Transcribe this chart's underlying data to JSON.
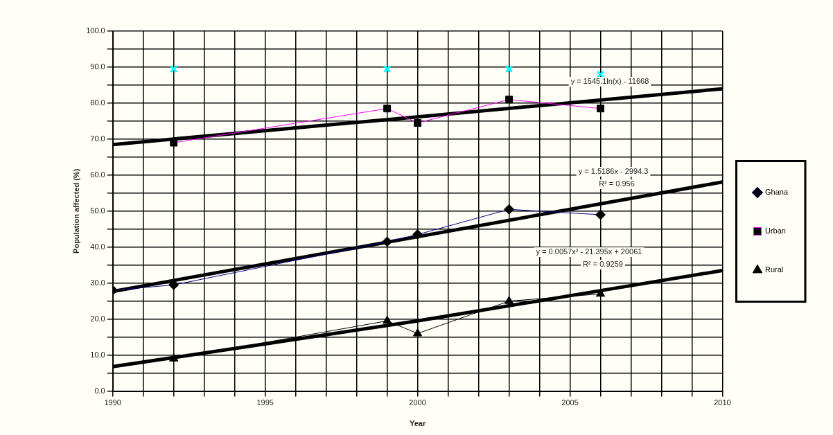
{
  "chart_data": {
    "type": "line",
    "xlabel": "Year",
    "ylabel": "Population affected (%)",
    "xlim": [
      1990,
      2010
    ],
    "xticks": [
      1990,
      {
        "value": 1991,
        "label": null
      },
      {
        "value": 1992,
        "label": null
      },
      {
        "value": 1993,
        "label": null
      },
      {
        "value": 1994,
        "label": null
      },
      1995,
      {
        "value": 1996,
        "label": null
      },
      {
        "value": 1997,
        "label": null
      },
      {
        "value": 1998,
        "label": null
      },
      {
        "value": 1999,
        "label": null
      },
      2000,
      {
        "value": 2001,
        "label": null
      },
      {
        "value": 2002,
        "label": null
      },
      {
        "value": 2003,
        "label": null
      },
      {
        "value": 2004,
        "label": null
      },
      2005,
      {
        "value": 2006,
        "label": null
      },
      {
        "value": 2007,
        "label": null
      },
      {
        "value": 2008,
        "label": null
      },
      {
        "value": 2009,
        "label": null
      },
      2010
    ],
    "ylim": [
      0,
      100
    ],
    "yticks": [
      {
        "value": 0,
        "label": "0.0"
      },
      {
        "value": 5,
        "label": null
      },
      {
        "value": 10,
        "label": "10.0"
      },
      {
        "value": 15,
        "label": null
      },
      {
        "value": 20,
        "label": "20.0"
      },
      {
        "value": 25,
        "label": null
      },
      {
        "value": 30,
        "label": "30.0"
      },
      {
        "value": 35,
        "label": null
      },
      {
        "value": 40,
        "label": "40.0"
      },
      {
        "value": 45,
        "label": null
      },
      {
        "value": 50,
        "label": "50.0"
      },
      {
        "value": 55,
        "label": null
      },
      {
        "value": 60,
        "label": "60.0"
      },
      {
        "value": 65,
        "label": null
      },
      {
        "value": 70,
        "label": "70.0"
      },
      {
        "value": 75,
        "label": null
      },
      {
        "value": 80,
        "label": "80.0"
      },
      {
        "value": 85,
        "label": null
      },
      {
        "value": 90,
        "label": "90.0"
      },
      {
        "value": 95,
        "label": null
      },
      {
        "value": 100,
        "label": "100.0"
      }
    ],
    "grid": true,
    "legend": "right",
    "series": [
      {
        "name": "Ghana",
        "type": "line",
        "color": "#000080",
        "marker": "diamond",
        "x": [
          1990,
          1992,
          1999,
          2000,
          2003,
          2006
        ],
        "values": [
          28,
          29.5,
          41.5,
          43.5,
          50.5,
          49
        ]
      },
      {
        "name": "Urban",
        "type": "line",
        "color": "#ff00ff",
        "marker": "square",
        "x": [
          1992,
          1999,
          2000,
          2003,
          2006
        ],
        "values": [
          69,
          78.5,
          74.5,
          81,
          78.5
        ]
      },
      {
        "name": "Rural",
        "type": "line",
        "color": "#000000",
        "marker": "triangle",
        "x": [
          1992,
          1999,
          2000,
          2003,
          2006
        ],
        "values": [
          9,
          19.5,
          16,
          25,
          27
        ]
      },
      {
        "type": "scatter",
        "color": "#00ffff",
        "marker": "cross",
        "x": [
          1992,
          1999,
          2003,
          2006
        ],
        "values": [
          89.5,
          89.5,
          89.5,
          88
        ]
      },
      {
        "type": "line",
        "color": "#000000",
        "x": [
          1990,
          2010
        ],
        "values": [
          27.7,
          58.1
        ]
      },
      {
        "type": "line",
        "color": "#000000",
        "x": [
          1990,
          2000,
          2010
        ],
        "values": [
          68.5,
          76.2,
          84
        ]
      },
      {
        "type": "line",
        "color": "#000000",
        "x": [
          1990,
          1995,
          2000,
          2005,
          2010
        ],
        "values": [
          6.8,
          13.1,
          19.5,
          26.5,
          33.5
        ]
      }
    ],
    "annotations": [
      "y = 1545.1ln(x) - 11668",
      "y = 1.5186x - 2994.3",
      "R² = 0.956",
      "y = 0.0057x² - 21.395x + 20061",
      "R² = 0.9259"
    ]
  }
}
